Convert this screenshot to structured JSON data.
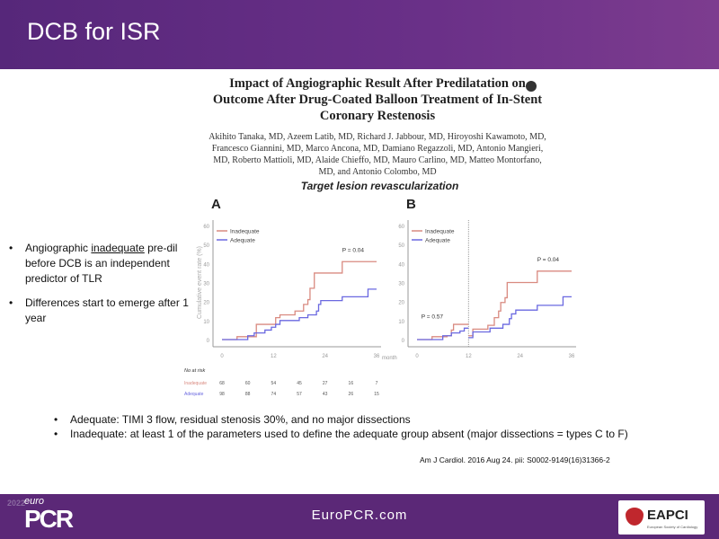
{
  "header": {
    "title": "DCB for ISR"
  },
  "paper": {
    "title": "Impact of Angiographic Result After Predilatation on Outcome After Drug-Coated Balloon Treatment of In-Stent Coronary Restenosis",
    "authors": "Akihito Tanaka, MD, Azeem Latib, MD, Richard J. Jabbour, MD, Hiroyoshi Kawamoto, MD, Francesco Giannini, MD, Marco Ancona, MD, Damiano Regazzoli, MD, Antonio Mangieri, MD, Roberto Mattioli, MD, Alaide Chieffo, MD, Mauro Carlino, MD, Matteo Montorfano, MD, and Antonio Colombo, MD"
  },
  "bullets": [
    {
      "pre": "Angiographic ",
      "u": "inadequate",
      "post": " pre-dil before DCB is an independent predictor of TLR"
    },
    {
      "text": "Differences start to emerge after 1 year"
    }
  ],
  "lower": [
    "Adequate: TIMI 3 flow, residual stenosis 30%, and no major dissections",
    "Inadequate: at least 1 of the parameters used to define the adequate group absent (major dissections = types C to F)"
  ],
  "citation": "Am J Cardiol. 2016 Aug 24. pii: S0002-9149(16)31366-2",
  "footer": {
    "year": "2022",
    "euro": "euro",
    "pcr": "PCR",
    "site": "EuroPCR.com",
    "eapci": "EAPCI",
    "eapci_sub": "European Society of Cardiology"
  },
  "colors": {
    "inadequate": "#d98a80",
    "adequate": "#6a68e0",
    "header": "#5a2879"
  },
  "chart_data": {
    "type": "line",
    "title": "Target lesion revascularization",
    "ylabel": "Cumulative event rate (%)",
    "xlabel": "month",
    "ylim": [
      0,
      60
    ],
    "xlim": [
      0,
      36
    ],
    "yticks": [
      "0",
      "10",
      "20",
      "30",
      "40",
      "50",
      "60"
    ],
    "xticks": [
      "0",
      "12",
      "24",
      "36"
    ],
    "panels": [
      {
        "label": "A",
        "pvalues": [
          {
            "text": "P = 0.04",
            "x": 28,
            "y": 46
          }
        ],
        "series": [
          {
            "name": "Inadequate",
            "steps": [
              [
                0,
                0
              ],
              [
                3.5,
                1.5
              ],
              [
                8,
                8
              ],
              [
                12.5,
                11.5
              ],
              [
                13.5,
                13
              ],
              [
                17,
                15
              ],
              [
                19,
                18.5
              ],
              [
                20,
                21
              ],
              [
                20.5,
                27
              ],
              [
                21.5,
                35
              ],
              [
                28,
                41
              ],
              [
                36,
                41
              ]
            ]
          },
          {
            "name": "Adequate",
            "steps": [
              [
                0,
                0
              ],
              [
                6,
                2
              ],
              [
                7.5,
                3.5
              ],
              [
                10,
                5
              ],
              [
                11.5,
                6.5
              ],
              [
                12.5,
                8
              ],
              [
                13.5,
                10
              ],
              [
                18,
                11.5
              ],
              [
                20,
                13
              ],
              [
                22,
                15
              ],
              [
                22.5,
                18.5
              ],
              [
                23,
                20.5
              ],
              [
                28,
                22.5
              ],
              [
                34,
                26.5
              ],
              [
                36,
                26.5
              ]
            ]
          }
        ],
        "risk": {
          "title": "No at risk",
          "rows": [
            {
              "name": "Inadequate",
              "values": [
                "68",
                "60",
                "54",
                "45",
                "27",
                "16",
                "7"
              ]
            },
            {
              "name": "Adequate",
              "values": [
                "98",
                "88",
                "74",
                "57",
                "43",
                "26",
                "15"
              ]
            }
          ]
        }
      },
      {
        "label": "B",
        "pvalues": [
          {
            "text": "P = 0.57",
            "x": 1,
            "y": 11
          },
          {
            "text": "P = 0.04",
            "x": 28,
            "y": 41
          }
        ],
        "landmark": 12,
        "series": [
          {
            "name": "Inadequate",
            "steps": [
              [
                0,
                0
              ],
              [
                3.5,
                1.5
              ],
              [
                7,
                2
              ],
              [
                8,
                5
              ],
              [
                8.5,
                8
              ],
              [
                12,
                8
              ]
            ],
            "steps2": [
              [
                12,
                2
              ],
              [
                13,
                5.5
              ],
              [
                16.5,
                7.5
              ],
              [
                18,
                11.5
              ],
              [
                19,
                15
              ],
              [
                19.5,
                19.5
              ],
              [
                20.5,
                22
              ],
              [
                21,
                30
              ],
              [
                28,
                36
              ],
              [
                36,
                36
              ]
            ]
          },
          {
            "name": "Adequate",
            "steps": [
              [
                0,
                0
              ],
              [
                6,
                2
              ],
              [
                8,
                3.5
              ],
              [
                10,
                4.5
              ],
              [
                11,
                6
              ],
              [
                12,
                6
              ]
            ],
            "steps2": [
              [
                12,
                1
              ],
              [
                13,
                4
              ],
              [
                17,
                6
              ],
              [
                20,
                8
              ],
              [
                21.5,
                11
              ],
              [
                22,
                13.5
              ],
              [
                23,
                15.5
              ],
              [
                28,
                18
              ],
              [
                34,
                22.5
              ],
              [
                36,
                22.5
              ]
            ]
          }
        ]
      }
    ]
  }
}
